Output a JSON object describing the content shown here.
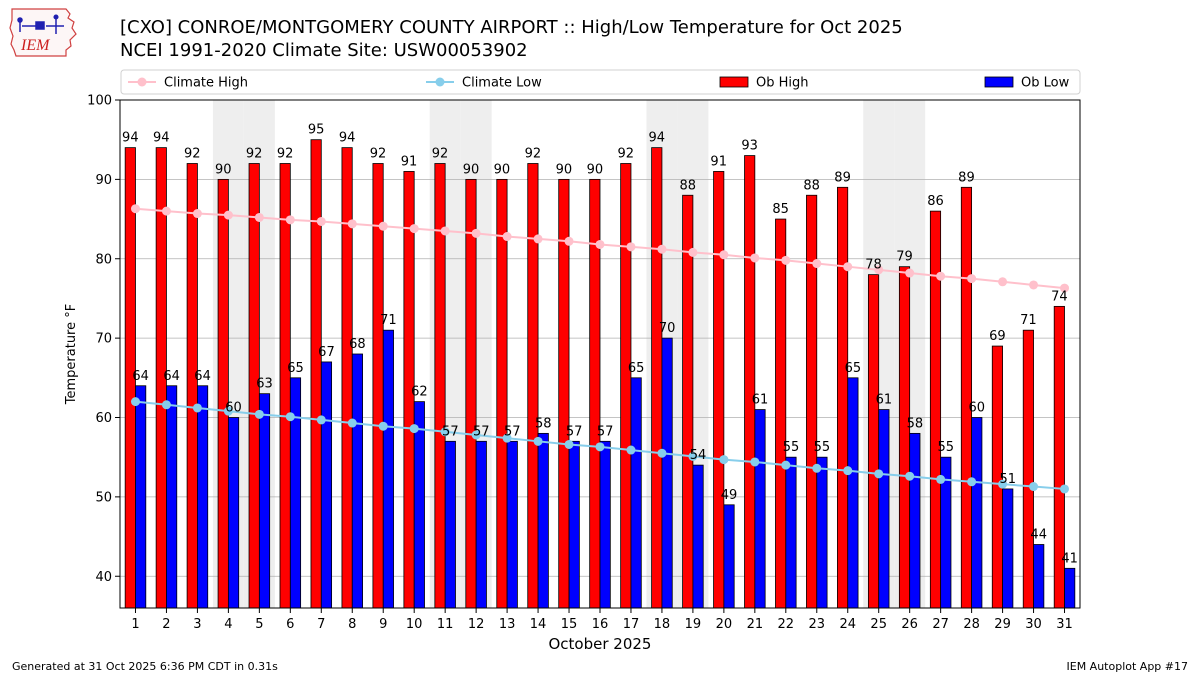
{
  "header": {
    "title_line1": "[CXO] CONROE/MONTGOMERY COUNTY AIRPORT :: High/Low Temperature for Oct 2025",
    "title_line2": "NCEI 1991-2020 Climate Site: USW00053902"
  },
  "logo": {
    "text": "IEM",
    "icon": "iowa-state-weather-logo"
  },
  "footer": {
    "left": "Generated at 31 Oct 2025 6:36 PM CDT in 0.31s",
    "right": "IEM Autoplot App #17"
  },
  "chart_data": {
    "type": "bar",
    "categories": [
      "1",
      "2",
      "3",
      "4",
      "5",
      "6",
      "7",
      "8",
      "9",
      "10",
      "11",
      "12",
      "13",
      "14",
      "15",
      "16",
      "17",
      "18",
      "19",
      "20",
      "21",
      "22",
      "23",
      "24",
      "25",
      "26",
      "27",
      "28",
      "29",
      "30",
      "31"
    ],
    "xlabel": "October 2025",
    "ylabel": "Temperature °F",
    "ylim": [
      36,
      100
    ],
    "yticks": [
      40,
      50,
      60,
      70,
      80,
      90,
      100
    ],
    "grid": true,
    "legend_position": "top",
    "weekend_shading_days": [
      4,
      5,
      11,
      12,
      18,
      19,
      25,
      26
    ],
    "series": [
      {
        "name": "Ob High",
        "kind": "bar",
        "color": "#ff0000",
        "values": [
          94,
          94,
          92,
          90,
          92,
          92,
          95,
          94,
          92,
          91,
          92,
          90,
          90,
          92,
          90,
          90,
          92,
          94,
          88,
          91,
          93,
          85,
          88,
          89,
          78,
          79,
          86,
          89,
          69,
          71,
          74
        ]
      },
      {
        "name": "Ob Low",
        "kind": "bar",
        "color": "#0000ff",
        "values": [
          64,
          64,
          64,
          60,
          63,
          65,
          67,
          68,
          71,
          62,
          57,
          57,
          57,
          58,
          57,
          57,
          65,
          70,
          54,
          49,
          61,
          55,
          55,
          65,
          61,
          58,
          55,
          60,
          51,
          44,
          41
        ]
      },
      {
        "name": "Climate High",
        "kind": "line",
        "color": "#ffc0cb",
        "values": [
          86.3,
          86.0,
          85.7,
          85.5,
          85.2,
          84.9,
          84.7,
          84.4,
          84.1,
          83.8,
          83.5,
          83.2,
          82.8,
          82.5,
          82.2,
          81.8,
          81.5,
          81.2,
          80.8,
          80.5,
          80.1,
          79.8,
          79.4,
          79.0,
          78.6,
          78.2,
          77.8,
          77.5,
          77.1,
          76.7,
          76.3
        ]
      },
      {
        "name": "Climate Low",
        "kind": "line",
        "color": "#87ceeb",
        "values": [
          62.0,
          61.6,
          61.2,
          60.8,
          60.4,
          60.1,
          59.7,
          59.3,
          58.9,
          58.6,
          58.2,
          57.8,
          57.4,
          57.0,
          56.6,
          56.3,
          55.9,
          55.5,
          55.1,
          54.7,
          54.4,
          54.0,
          53.6,
          53.3,
          52.9,
          52.6,
          52.2,
          51.9,
          51.6,
          51.3,
          51.0
        ]
      }
    ]
  }
}
